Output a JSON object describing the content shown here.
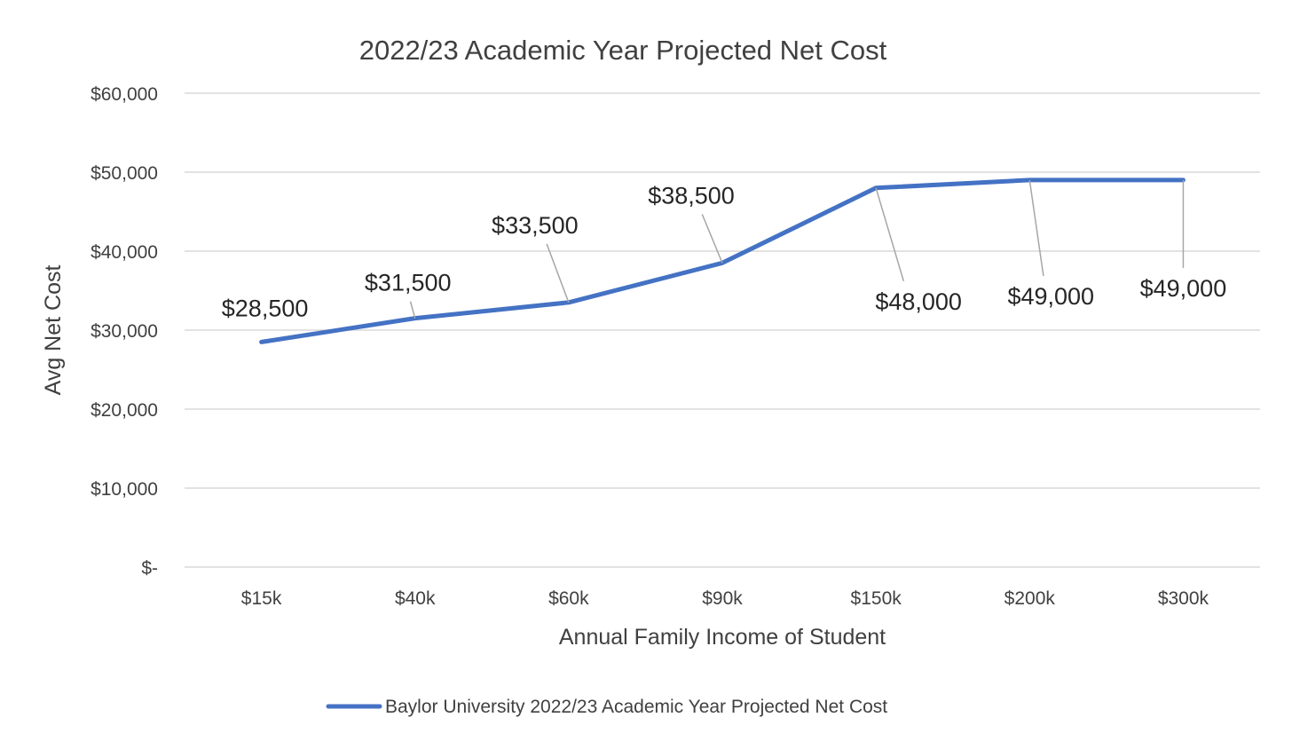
{
  "chart_data": {
    "type": "line",
    "title": "2022/23 Academic Year Projected Net Cost",
    "xlabel": "Annual Family Income of Student",
    "ylabel": "Avg Net Cost",
    "categories": [
      "$15k",
      "$40k",
      "$60k",
      "$90k",
      "$150k",
      "$200k",
      "$300k"
    ],
    "series": [
      {
        "name": "Baylor University 2022/23 Academic Year Projected Net Cost",
        "values": [
          28500,
          31500,
          33500,
          38500,
          48000,
          49000,
          49000
        ],
        "labels": [
          "$28,500",
          "$31,500",
          "$33,500",
          "$38,500",
          "$48,000",
          "$49,000",
          "$49,000"
        ],
        "color": "#4472c4"
      }
    ],
    "ylim": [
      0,
      60000
    ],
    "yticks": [
      {
        "value": 0,
        "label": "$-"
      },
      {
        "value": 10000,
        "label": "$10,000"
      },
      {
        "value": 20000,
        "label": "$20,000"
      },
      {
        "value": 30000,
        "label": "$30,000"
      },
      {
        "value": 40000,
        "label": "$40,000"
      },
      {
        "value": 50000,
        "label": "$50,000"
      },
      {
        "value": 60000,
        "label": "$60,000"
      }
    ],
    "grid": true,
    "legend_position": "bottom"
  }
}
